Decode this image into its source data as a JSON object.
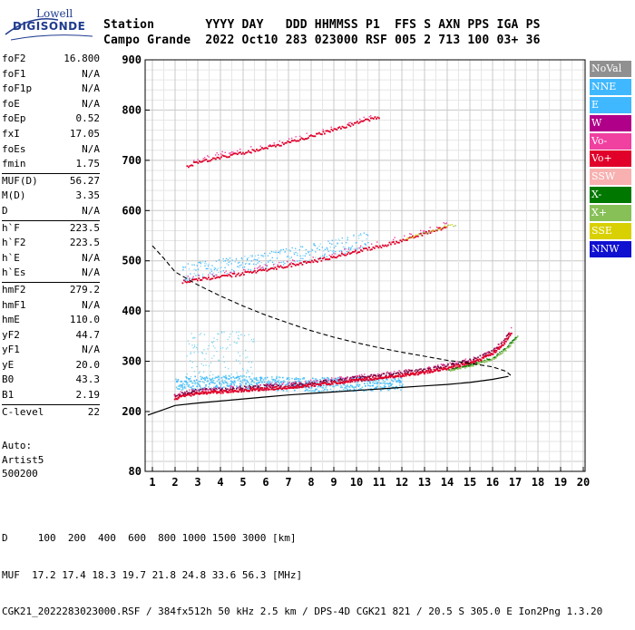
{
  "logo": {
    "line1": "Lowell",
    "line2": "DIGISONDE"
  },
  "header": {
    "row1": [
      "Station",
      "YYYY",
      "DAY",
      "DDD",
      "HHMMSS",
      "P1",
      "FFS",
      "S",
      "AXN",
      "PPS",
      "IGA",
      "PS"
    ],
    "row2": [
      "Campo Grande",
      "2022",
      "Oct10",
      "283",
      "023000",
      "RSF",
      "005",
      "2",
      "713",
      "100",
      "03+",
      "36"
    ]
  },
  "params": {
    "groups": [
      [
        [
          "foF2",
          "16.800"
        ],
        [
          "foF1",
          "N/A"
        ],
        [
          "foF1p",
          "N/A"
        ],
        [
          "foE",
          "N/A"
        ],
        [
          "foEp",
          "0.52"
        ],
        [
          "fxI",
          "17.05"
        ],
        [
          "foEs",
          "N/A"
        ],
        [
          "fmin",
          "1.75"
        ]
      ],
      [
        [
          "MUF(D)",
          "56.27"
        ],
        [
          "M(D)",
          "3.35"
        ],
        [
          "D",
          "N/A"
        ]
      ],
      [
        [
          "h`F",
          "223.5"
        ],
        [
          "h`F2",
          "223.5"
        ],
        [
          "h`E",
          "N/A"
        ],
        [
          "h`Es",
          "N/A"
        ]
      ],
      [
        [
          "hmF2",
          "279.2"
        ],
        [
          "hmF1",
          "N/A"
        ],
        [
          "hmE",
          "110.0"
        ],
        [
          "yF2",
          "44.7"
        ],
        [
          "yF1",
          "N/A"
        ],
        [
          "yE",
          "20.0"
        ],
        [
          "B0",
          "43.3"
        ],
        [
          "B1",
          "2.19"
        ]
      ],
      [
        [
          "C-level",
          "22"
        ]
      ]
    ],
    "extra": [
      "Auto:",
      "Artist5",
      "500200"
    ]
  },
  "legend": [
    {
      "label": "NoVal",
      "color": "#909090"
    },
    {
      "label": "NNE",
      "color": "#40b8ff"
    },
    {
      "label": "E",
      "color": "#40b8ff"
    },
    {
      "label": "W",
      "color": "#b0008a"
    },
    {
      "label": "Vo-",
      "color": "#f040a0"
    },
    {
      "label": "Vo+",
      "color": "#e0002a"
    },
    {
      "label": "SSW",
      "color": "#f8b0b0"
    },
    {
      "label": "X-",
      "color": "#007800"
    },
    {
      "label": "X+",
      "color": "#88c058"
    },
    {
      "label": "SSE",
      "color": "#d8d000"
    },
    {
      "label": "NNW",
      "color": "#1010d0"
    }
  ],
  "footer": {
    "line1": "D     100  200  400  600  800 1000 1500 3000 [km]",
    "line2": "MUF  17.2 17.4 18.3 19.7 21.8 24.8 33.6 56.3 [MHz]",
    "line3": "CGK21_2022283023000.RSF / 384fx512h 50 kHz 2.5 km / DPS-4D CGK21 821 / 20.5 S 305.0 E Ion2Png 1.3.20"
  },
  "chart_data": {
    "type": "scatter",
    "xlim": [
      1,
      20
    ],
    "ylim": [
      80,
      900
    ],
    "xticks": [
      1,
      2,
      3,
      4,
      5,
      6,
      7,
      8,
      9,
      10,
      11,
      12,
      13,
      14,
      15,
      16,
      17,
      18,
      19,
      20
    ],
    "yticks": [
      80,
      200,
      300,
      400,
      500,
      600,
      700,
      800,
      900
    ],
    "grid": true,
    "legend_position": "right",
    "traces": [
      {
        "name": "O-trace F2",
        "color": "#e0002a",
        "x": [
          1.95,
          2.5,
          3,
          4,
          5,
          6,
          7,
          8,
          9,
          10,
          11,
          12,
          13,
          14,
          15,
          15.5,
          16,
          16.5,
          16.8
        ],
        "y": [
          228,
          234,
          238,
          241,
          244,
          247,
          250,
          254,
          259,
          264,
          269,
          274,
          280,
          288,
          298,
          306,
          318,
          338,
          360
        ]
      },
      {
        "name": "O-trace F2 multiple",
        "color": "#e0002a",
        "x": [
          2.3,
          3,
          4,
          5,
          6,
          7,
          8,
          9,
          10,
          11,
          12,
          13,
          14
        ],
        "y": [
          460,
          464,
          470,
          476,
          484,
          492,
          500,
          510,
          520,
          530,
          542,
          556,
          570
        ]
      },
      {
        "name": "O-trace F2 triple",
        "color": "#e0002a",
        "x": [
          2.5,
          3,
          4,
          5,
          6,
          7,
          8,
          9,
          10,
          11
        ],
        "y": [
          690,
          698,
          708,
          716,
          726,
          738,
          750,
          762,
          776,
          788
        ]
      },
      {
        "name": "spread F",
        "color": "#40b8ff",
        "x": [
          2,
          3,
          4,
          5,
          6,
          7,
          8,
          9,
          10,
          11,
          12
        ],
        "y": [
          255,
          258,
          260,
          259,
          258,
          256,
          255,
          255,
          256,
          257,
          258
        ]
      },
      {
        "name": "X-trace",
        "color": "#88c058",
        "x": [
          14,
          15,
          16,
          16.5,
          17
        ],
        "y": [
          283,
          293,
          308,
          325,
          350
        ]
      }
    ],
    "profile": {
      "x": [
        0.8,
        1.5,
        2,
        3,
        4,
        5,
        6,
        7,
        8,
        9,
        10,
        11,
        12,
        13,
        14,
        15,
        16,
        16.7
      ],
      "y": [
        193,
        204,
        212,
        217,
        221,
        225,
        229,
        233,
        236,
        239,
        242,
        245,
        248,
        251,
        254,
        258,
        264,
        270
      ]
    },
    "profile_dashed": {
      "x": [
        1,
        1.5,
        2,
        3,
        4,
        5,
        6,
        7,
        8,
        9,
        10,
        11,
        12,
        13,
        14,
        15,
        16,
        16.6,
        16.8
      ],
      "y": [
        530,
        505,
        478,
        452,
        430,
        410,
        392,
        376,
        361,
        348,
        337,
        327,
        318,
        310,
        302,
        296,
        289,
        280,
        272
      ]
    }
  }
}
